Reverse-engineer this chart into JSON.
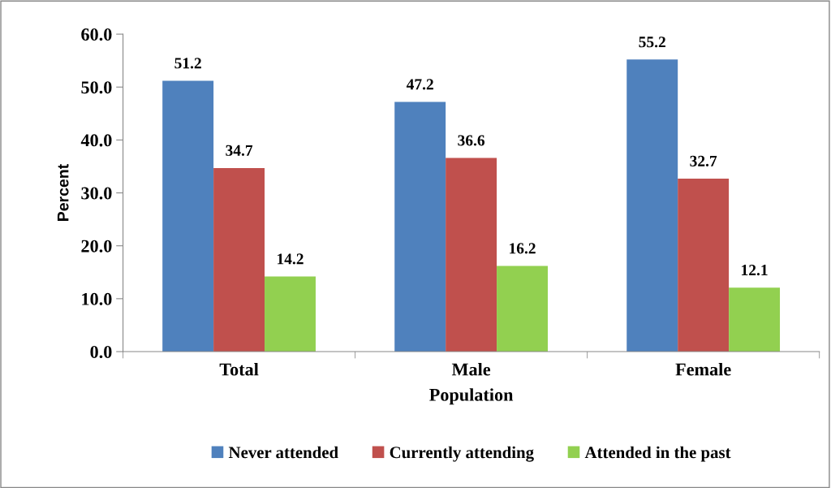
{
  "chart_data": {
    "type": "bar",
    "xlabel": "Population",
    "ylabel": "Percent",
    "categories": [
      "Total",
      "Male",
      "Female"
    ],
    "series": [
      {
        "name": "Never attended",
        "color": "#4f81bd",
        "values": [
          51.2,
          47.2,
          55.2
        ]
      },
      {
        "name": "Currently attending",
        "color": "#c0504d",
        "values": [
          34.7,
          36.6,
          32.7
        ]
      },
      {
        "name": "Attended in the past",
        "color": "#92d050",
        "values": [
          14.2,
          16.2,
          12.1
        ]
      }
    ],
    "ylim": [
      0,
      60
    ],
    "yticks": [
      {
        "value": 0,
        "label": "0.0"
      },
      {
        "value": 10,
        "label": "10.0"
      },
      {
        "value": 20,
        "label": "20.0"
      },
      {
        "value": 30,
        "label": "30.0"
      },
      {
        "value": 40,
        "label": "40.0"
      },
      {
        "value": 50,
        "label": "50.0"
      },
      {
        "value": 60,
        "label": "60.0"
      }
    ],
    "data_labels": true,
    "grid": false,
    "legend": "bottom"
  }
}
